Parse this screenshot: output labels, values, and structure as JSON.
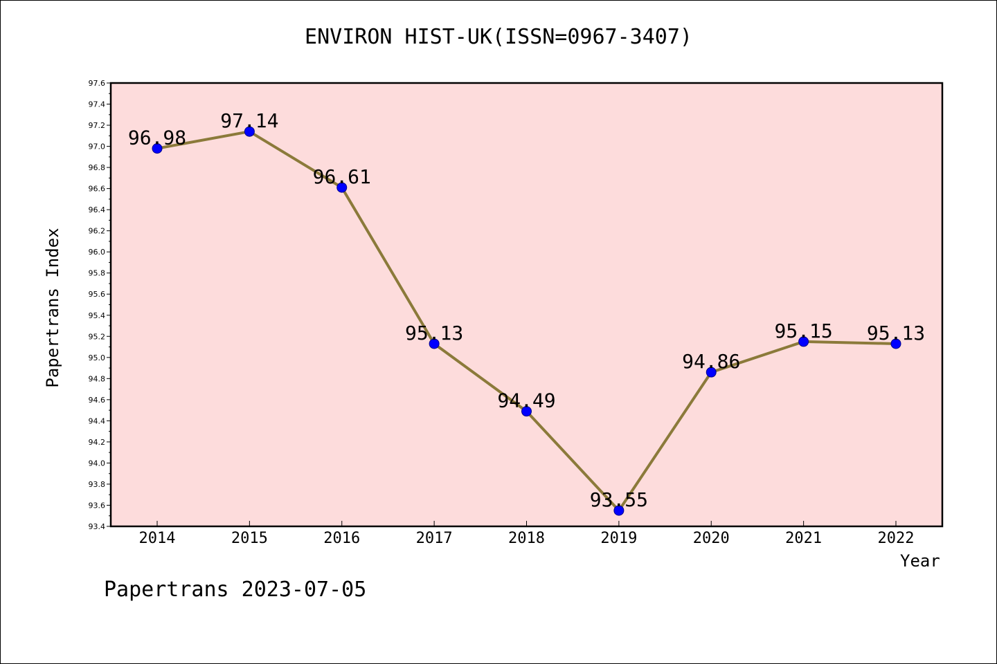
{
  "chart_data": {
    "type": "line",
    "title": "ENVIRON HIST-UK(ISSN=0967-3407)",
    "xlabel": "Year",
    "ylabel": "Papertrans Index",
    "categories": [
      "2014",
      "2015",
      "2016",
      "2017",
      "2018",
      "2019",
      "2020",
      "2021",
      "2022"
    ],
    "series": [
      {
        "values": [
          96.98,
          97.14,
          96.61,
          95.13,
          94.49,
          93.55,
          94.86,
          95.15,
          95.13
        ],
        "labels": [
          "96.98",
          "97.14",
          "96.61",
          "95.13",
          "94.49",
          "93.55",
          "94.86",
          "95.15",
          "95.13"
        ]
      }
    ],
    "ylim": [
      93.4,
      97.6
    ],
    "yticks": [
      "93.4",
      "93.6",
      "93.8",
      "94.0",
      "94.2",
      "94.4",
      "94.6",
      "94.8",
      "95.0",
      "95.2",
      "95.4",
      "95.6",
      "95.8",
      "96.0",
      "96.2",
      "96.4",
      "96.6",
      "96.8",
      "97.0",
      "97.2",
      "97.4",
      "97.6"
    ],
    "grid": false,
    "colors": {
      "plot_bg": "#fddcdc",
      "line": "#8b7a3a",
      "marker": "#0000ff"
    }
  },
  "footer": "Papertrans 2023-07-05"
}
